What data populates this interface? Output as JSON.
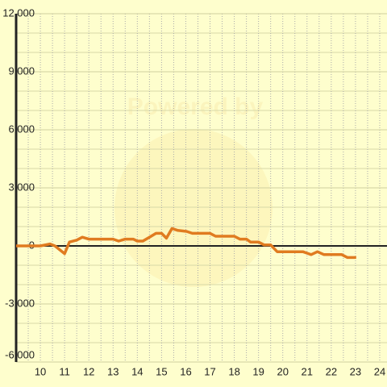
{
  "chart_data": {
    "type": "line",
    "watermark": "Powered by",
    "xlim": [
      9,
      24.3
    ],
    "xticks": [
      10,
      11,
      12,
      13,
      14,
      15,
      16,
      17,
      18,
      19,
      20,
      21,
      22,
      23,
      24
    ],
    "ylim": [
      -6000,
      12000
    ],
    "yticks": [
      {
        "value": -6000,
        "label": "-6,000"
      },
      {
        "value": -3000,
        "label": "-3,000"
      },
      0,
      {
        "value": 3000,
        "label": "3,000"
      },
      {
        "value": 6000,
        "label": "6,000"
      },
      {
        "value": 9000,
        "label": "9,000"
      },
      {
        "value": 12000,
        "label": "12,000"
      }
    ],
    "grid": true,
    "series": [
      {
        "color": "#e07b20",
        "x": [
          9,
          10,
          10.4,
          10.6,
          11,
          11.2,
          11.5,
          11.73,
          12,
          13,
          13.23,
          13.5,
          13.83,
          14,
          14.23,
          14.5,
          14.77,
          15,
          15.2,
          15.43,
          15.67,
          16.03,
          16.27,
          17,
          17.23,
          18,
          18.23,
          18.5,
          18.67,
          19,
          19.23,
          19.5,
          19.77,
          20.83,
          21.17,
          21.43,
          21.7,
          22.43,
          22.67,
          23.03
        ],
        "values": [
          0,
          0,
          100,
          0,
          -400,
          200,
          300,
          450,
          350,
          350,
          250,
          350,
          350,
          250,
          250,
          450,
          650,
          650,
          400,
          900,
          800,
          750,
          650,
          650,
          500,
          500,
          350,
          350,
          200,
          200,
          50,
          50,
          -300,
          -300,
          -450,
          -300,
          -450,
          -450,
          -600,
          -600
        ]
      }
    ]
  }
}
